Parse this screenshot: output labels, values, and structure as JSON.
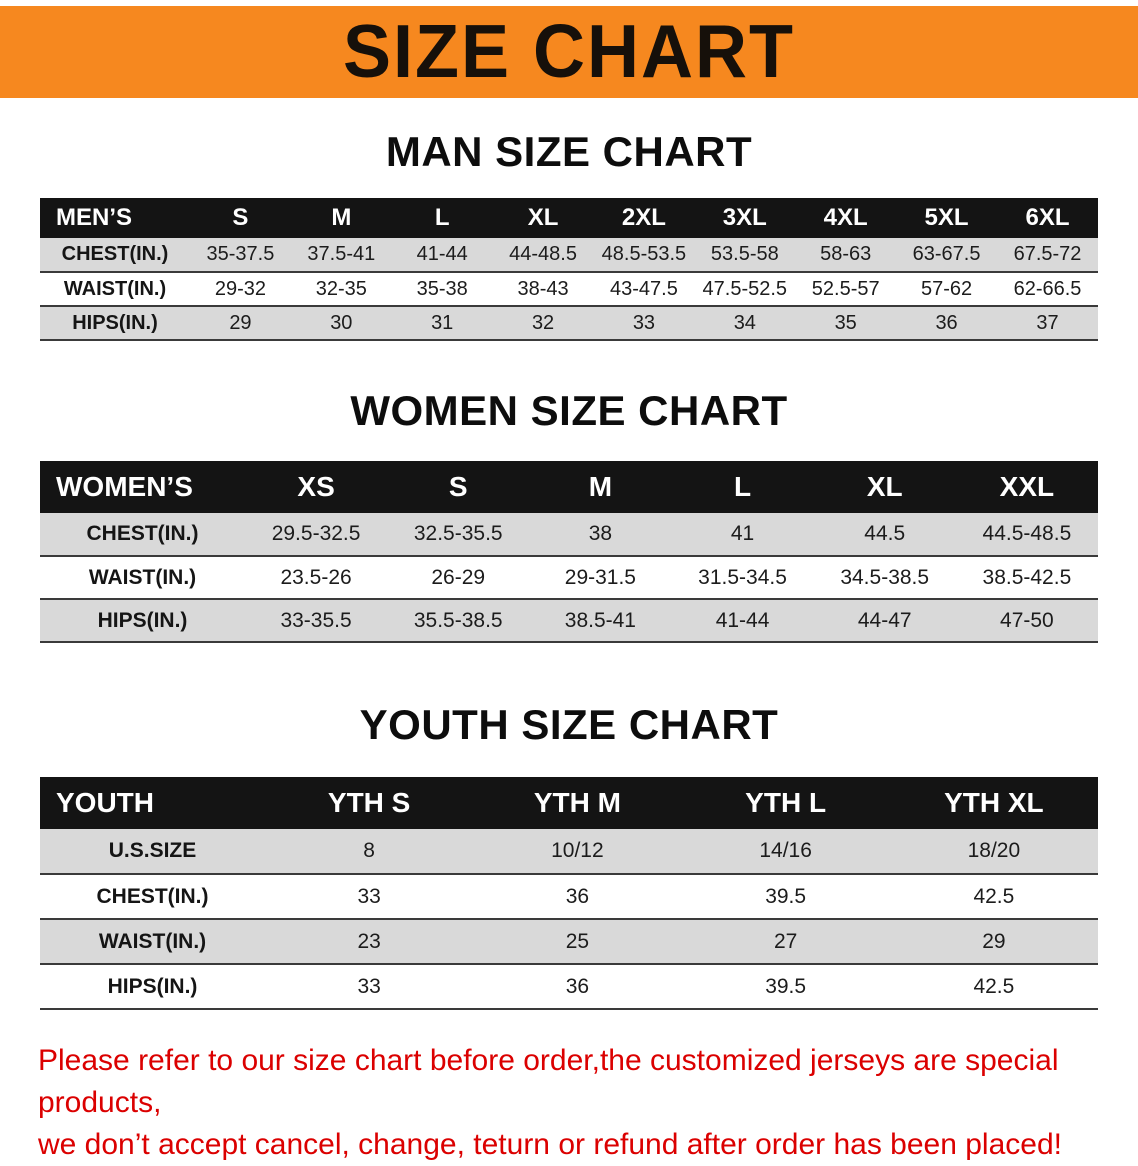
{
  "banner": {
    "title": "SIZE CHART"
  },
  "colors": {
    "banner_bg": "#F6881F",
    "table_header_bg": "#141414",
    "row_alt_bg": "#D9D9D9",
    "footer_text": "#DB0000"
  },
  "sections": [
    {
      "heading": "MAN SIZE CHART",
      "table": {
        "header": [
          "MEN’S",
          "S",
          "M",
          "L",
          "XL",
          "2XL",
          "3XL",
          "4XL",
          "5XL",
          "6XL"
        ],
        "rows": [
          [
            "CHEST(IN.)",
            "35-37.5",
            "37.5-41",
            "41-44",
            "44-48.5",
            "48.5-53.5",
            "53.5-58",
            "58-63",
            "63-67.5",
            "67.5-72"
          ],
          [
            "WAIST(IN.)",
            "29-32",
            "32-35",
            "35-38",
            "38-43",
            "43-47.5",
            "47.5-52.5",
            "52.5-57",
            "57-62",
            "62-66.5"
          ],
          [
            "HIPS(IN.)",
            "29",
            "30",
            "31",
            "32",
            "33",
            "34",
            "35",
            "36",
            "37"
          ]
        ]
      }
    },
    {
      "heading": "WOMEN SIZE CHART",
      "table": {
        "header": [
          "WOMEN’S",
          "XS",
          "S",
          "M",
          "L",
          "XL",
          "XXL"
        ],
        "rows": [
          [
            "CHEST(IN.)",
            "29.5-32.5",
            "32.5-35.5",
            "38",
            "41",
            "44.5",
            "44.5-48.5"
          ],
          [
            "WAIST(IN.)",
            "23.5-26",
            "26-29",
            "29-31.5",
            "31.5-34.5",
            "34.5-38.5",
            "38.5-42.5"
          ],
          [
            "HIPS(IN.)",
            "33-35.5",
            "35.5-38.5",
            "38.5-41",
            "41-44",
            "44-47",
            "47-50"
          ]
        ]
      }
    },
    {
      "heading": "YOUTH SIZE CHART",
      "table": {
        "header": [
          "YOUTH",
          "YTH S",
          "YTH M",
          "YTH L",
          "YTH XL"
        ],
        "rows": [
          [
            "U.S.SIZE",
            "8",
            "10/12",
            "14/16",
            "18/20"
          ],
          [
            "CHEST(IN.)",
            "33",
            "36",
            "39.5",
            "42.5"
          ],
          [
            "WAIST(IN.)",
            "23",
            "25",
            "27",
            "29"
          ],
          [
            "HIPS(IN.)",
            "33",
            "36",
            "39.5",
            "42.5"
          ]
        ]
      }
    }
  ],
  "footer": {
    "line1": "Please refer to our size chart before order,the customized jerseys are special products,",
    "line2": "we don’t accept cancel, change, teturn or refund after order has been placed!"
  }
}
